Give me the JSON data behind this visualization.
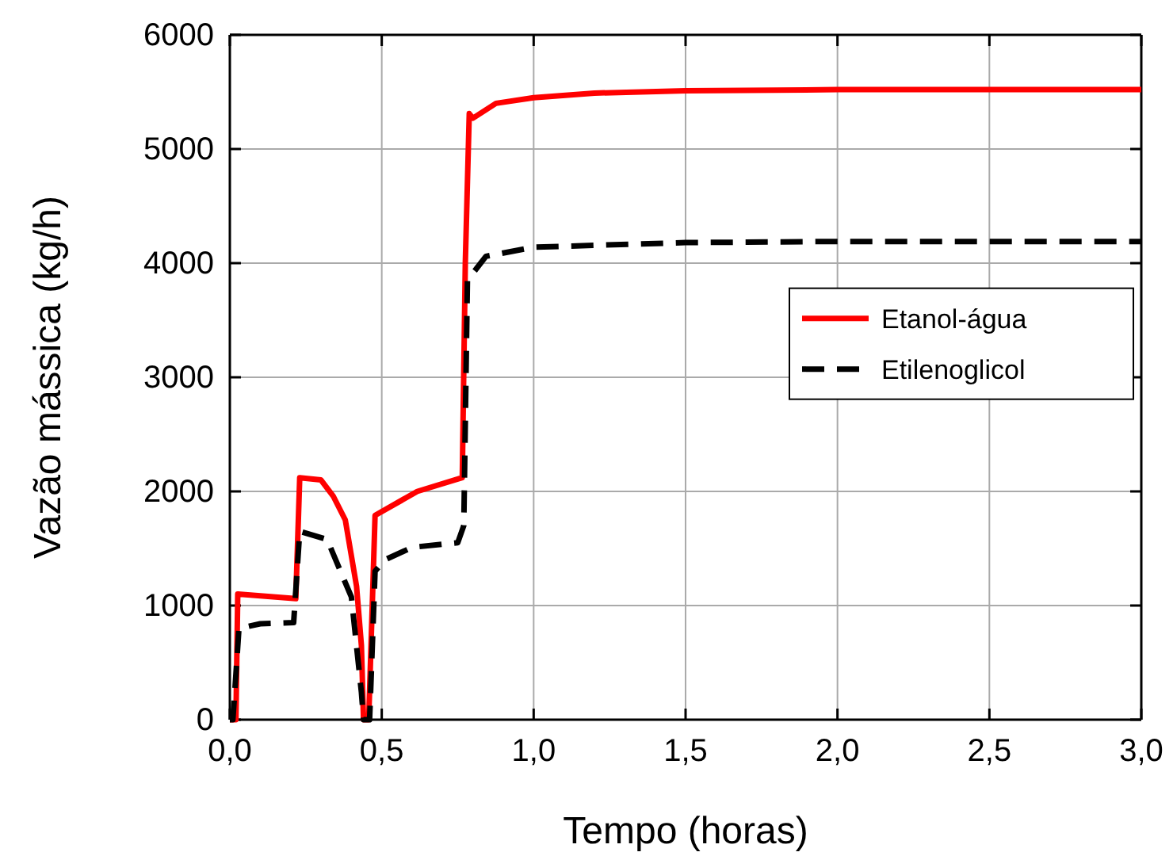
{
  "chart_data": {
    "type": "line",
    "xlabel": "Tempo (horas)",
    "ylabel": "Vazão mássica (kg/h)",
    "xlim": [
      0,
      3
    ],
    "ylim": [
      0,
      6000
    ],
    "xticks": [
      {
        "value": 0,
        "label": "0,0"
      },
      {
        "value": 0.5,
        "label": "0,5"
      },
      {
        "value": 1,
        "label": "1,0"
      },
      {
        "value": 1.5,
        "label": "1,5"
      },
      {
        "value": 2,
        "label": "2,0"
      },
      {
        "value": 2.5,
        "label": "2,5"
      },
      {
        "value": 3,
        "label": "3,0"
      }
    ],
    "yticks": [
      0,
      1000,
      2000,
      3000,
      4000,
      5000,
      6000
    ],
    "grid": true,
    "legend": "right",
    "series": [
      {
        "name": "Etanol-água",
        "color": "#ff0000",
        "line_style": "solid",
        "x": [
          0,
          0.02,
          0.026,
          0.217,
          0.23,
          0.3,
          0.34,
          0.38,
          0.417,
          0.433,
          0.44,
          0.457,
          0.478,
          0.617,
          0.765,
          0.775,
          0.788,
          0.8,
          0.876,
          1.0,
          1.2,
          1.5,
          2.0,
          3.0
        ],
        "values": [
          0,
          0,
          1100,
          1060,
          2120,
          2100,
          1960,
          1750,
          1170,
          650,
          0,
          0,
          1790,
          2000,
          2120,
          4000,
          5310,
          5270,
          5400,
          5450,
          5490,
          5510,
          5520,
          5520
        ]
      },
      {
        "name": "Etilenoglicol",
        "color": "#000000",
        "line_style": "dashed",
        "x": [
          0,
          0.01,
          0.03,
          0.1,
          0.21,
          0.23,
          0.32,
          0.4,
          0.433,
          0.44,
          0.46,
          0.478,
          0.51,
          0.6,
          0.75,
          0.77,
          0.782,
          0.843,
          1.0,
          1.5,
          2.0,
          3.0
        ],
        "values": [
          0,
          0,
          800,
          840,
          850,
          1650,
          1580,
          1075,
          240,
          0,
          0,
          1300,
          1400,
          1510,
          1550,
          1700,
          3850,
          4060,
          4140,
          4180,
          4190,
          4190
        ]
      }
    ]
  }
}
